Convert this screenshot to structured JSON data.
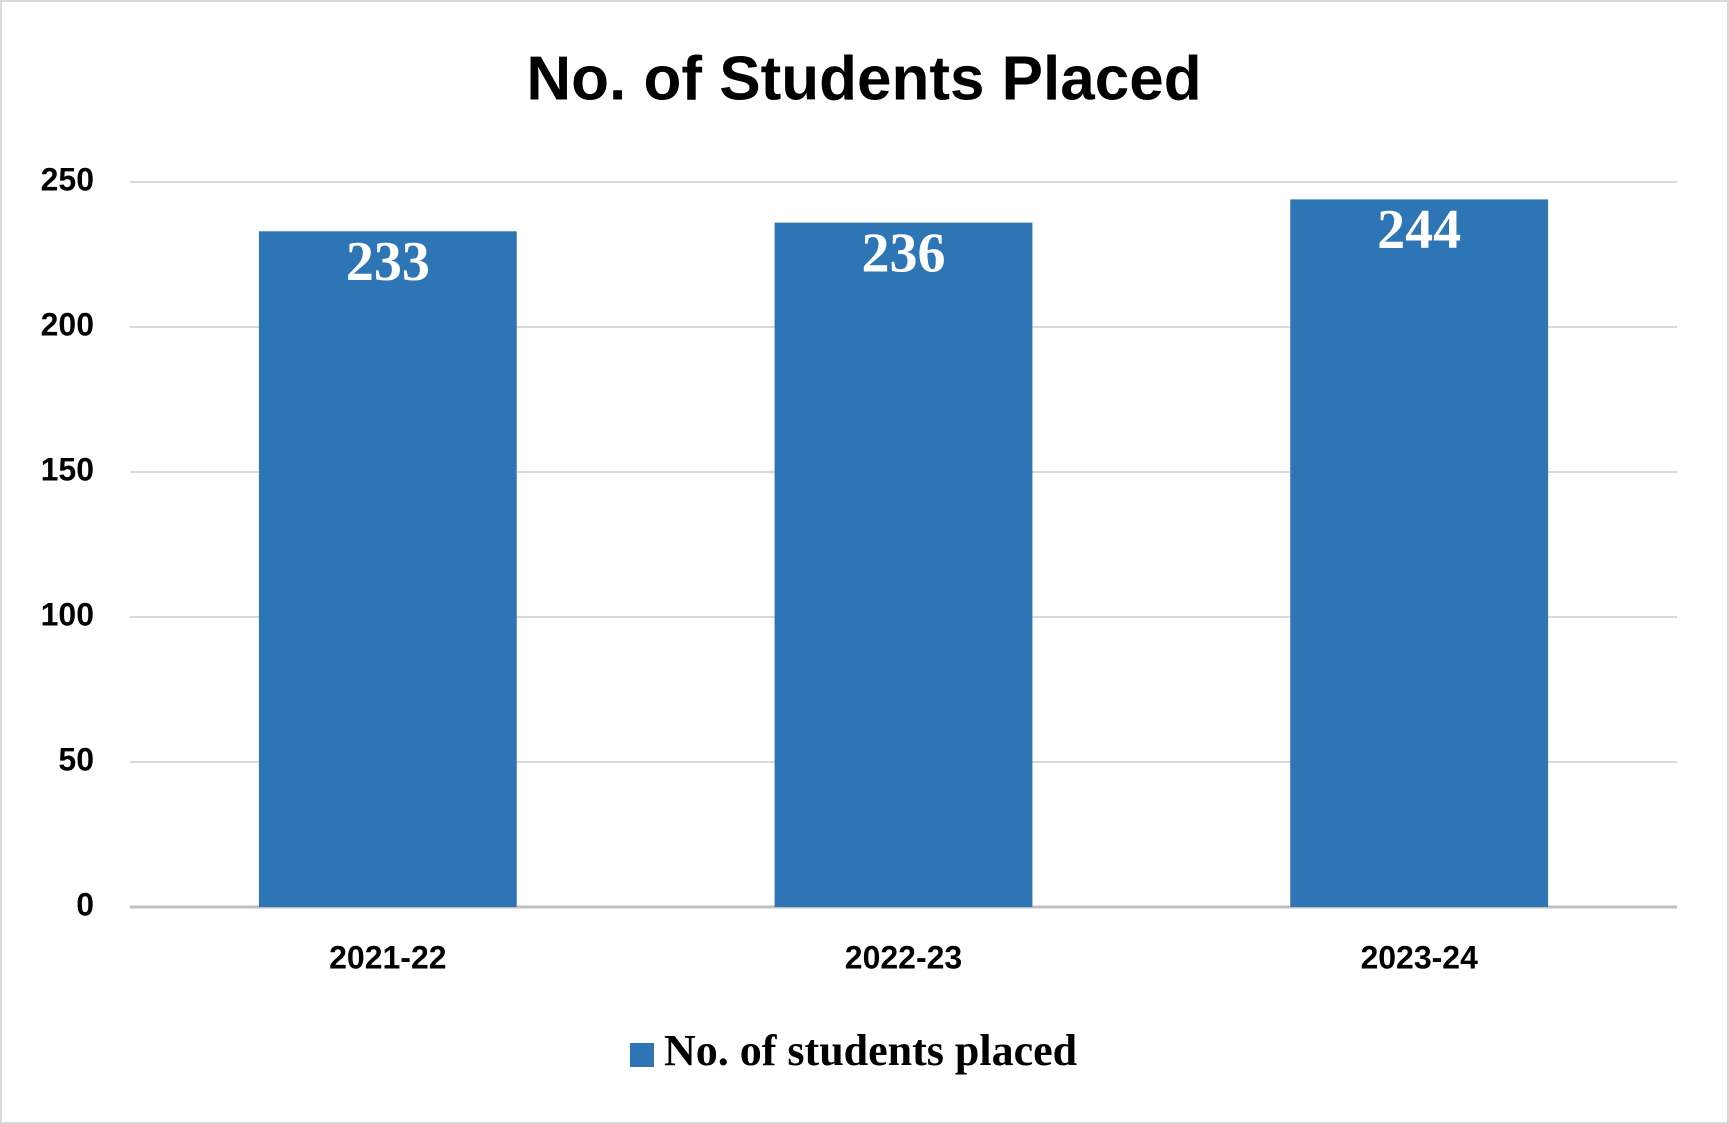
{
  "chart_data": {
    "type": "bar",
    "title": "No. of Students Placed",
    "categories": [
      "2021-22",
      "2022-23",
      "2023-24"
    ],
    "series": [
      {
        "name": "No. of students placed",
        "color": "#2e75b6",
        "values": [
          233,
          236,
          244
        ]
      }
    ],
    "ylim": [
      0,
      250
    ],
    "yticks": [
      0,
      50,
      100,
      150,
      200,
      250
    ],
    "grid": true,
    "legend": "bottom"
  }
}
